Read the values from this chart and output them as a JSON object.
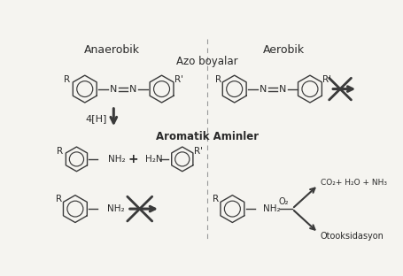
{
  "title_anaerobic": "Anaerobik",
  "title_aerobic": "Aerobik",
  "label_azo": "Azo boyalar",
  "label_aromatic": "Aromatik Aminler",
  "label_4h": "4[H]",
  "label_nh2": "NH₂",
  "label_h2n": "H₂N",
  "label_r_prime": "R'",
  "label_r": "R",
  "label_o2": "O₂",
  "label_products": "CO₂+ H₂O + NH₃",
  "label_autoox": "Otooksidasyon",
  "bg_color": "#f5f4f0",
  "line_color": "#3a3a3a",
  "text_color": "#2a2a2a",
  "divider_color": "#999999"
}
